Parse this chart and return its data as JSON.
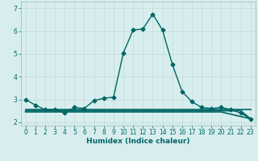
{
  "xlabel": "Humidex (Indice chaleur)",
  "background_color": "#d8eeee",
  "grid_color": "#c8dede",
  "line_color": "#006666",
  "xlim": [
    -0.5,
    23.5
  ],
  "ylim": [
    1.85,
    7.3
  ],
  "yticks": [
    2,
    3,
    4,
    5,
    6,
    7
  ],
  "xticks": [
    0,
    1,
    2,
    3,
    4,
    5,
    6,
    7,
    8,
    9,
    10,
    11,
    12,
    13,
    14,
    15,
    16,
    17,
    18,
    19,
    20,
    21,
    22,
    23
  ],
  "xtick_labels": [
    "0",
    "1",
    "2",
    "3",
    "4",
    "5",
    "6",
    "7",
    "8",
    "9",
    "10",
    "11",
    "12",
    "13",
    "14",
    "15",
    "16",
    "17",
    "18",
    "19",
    "20",
    "21",
    "22",
    "23"
  ],
  "series": [
    {
      "x": [
        0,
        1,
        2,
        3,
        4,
        5,
        6,
        7,
        8,
        9,
        10,
        11,
        12,
        13,
        14,
        15,
        16,
        17,
        18,
        19,
        20,
        21,
        22,
        23
      ],
      "y": [
        3.0,
        2.75,
        2.55,
        2.55,
        2.4,
        2.65,
        2.6,
        2.95,
        3.05,
        3.1,
        5.05,
        6.05,
        6.1,
        6.75,
        6.05,
        4.55,
        3.35,
        2.9,
        2.65,
        2.6,
        2.65,
        2.55,
        2.4,
        2.15
      ],
      "marker": "D",
      "markersize": 2.5,
      "linewidth": 1.0
    },
    {
      "x": [
        0,
        23
      ],
      "y": [
        2.55,
        2.55
      ],
      "marker": null,
      "linewidth": 1.2
    },
    {
      "x": [
        0,
        22,
        23
      ],
      "y": [
        2.5,
        2.5,
        2.15
      ],
      "marker": null,
      "linewidth": 1.2
    },
    {
      "x": [
        0,
        20,
        23
      ],
      "y": [
        2.45,
        2.45,
        2.15
      ],
      "marker": null,
      "linewidth": 1.2
    }
  ]
}
